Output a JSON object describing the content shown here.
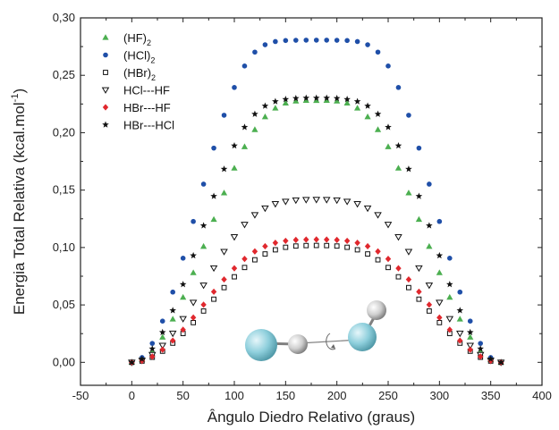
{
  "chart_data": {
    "type": "scatter",
    "xlabel": "Ângulo Diedro Relativo (graus)",
    "ylabel_main": "Energia Total Relativa (kcal.mol",
    "ylabel_sup": "-1",
    "ylabel_close": ")",
    "xlim": [
      -50,
      400
    ],
    "ylim": [
      -0.02,
      0.3
    ],
    "xticks": [
      -50,
      0,
      50,
      100,
      150,
      200,
      250,
      300,
      350,
      400
    ],
    "yticks": [
      0.0,
      0.05,
      0.1,
      0.15,
      0.2,
      0.25,
      0.3
    ],
    "ytick_labels": [
      "0,00",
      "0,05",
      "0,10",
      "0,15",
      "0,20",
      "0,25",
      "0,30"
    ],
    "x": [
      0,
      10,
      20,
      30,
      40,
      50,
      60,
      70,
      80,
      90,
      100,
      110,
      120,
      130,
      140,
      150,
      160,
      170,
      180,
      190,
      200,
      210,
      220,
      230,
      240,
      250,
      260,
      270,
      280,
      290,
      300,
      310,
      320,
      330,
      340,
      350,
      360
    ],
    "legend_position": "top-left",
    "series": [
      {
        "name": "(HF)",
        "sub": "2",
        "marker": "triangle-up",
        "color": "#4caf50",
        "values": [
          0.0,
          0.0025,
          0.0099,
          0.0218,
          0.0376,
          0.0566,
          0.078,
          0.1009,
          0.1244,
          0.1475,
          0.1691,
          0.1877,
          0.2026,
          0.2138,
          0.2213,
          0.2257,
          0.2275,
          0.2281,
          0.228,
          0.2281,
          0.2275,
          0.2257,
          0.2213,
          0.2138,
          0.2026,
          0.1877,
          0.1691,
          0.1475,
          0.1244,
          0.1009,
          0.078,
          0.0566,
          0.0376,
          0.0218,
          0.0099,
          0.0025,
          0.0
        ]
      },
      {
        "name": "(HCl)",
        "sub": "2",
        "marker": "circle",
        "color": "#1f4fa8",
        "values": [
          0.0,
          0.0042,
          0.0165,
          0.0359,
          0.0612,
          0.0907,
          0.1227,
          0.1552,
          0.1866,
          0.2152,
          0.2394,
          0.2581,
          0.2702,
          0.2766,
          0.2794,
          0.2803,
          0.2805,
          0.2806,
          0.2806,
          0.2806,
          0.2805,
          0.2803,
          0.2794,
          0.2766,
          0.2702,
          0.2581,
          0.2394,
          0.2152,
          0.1866,
          0.1552,
          0.1227,
          0.0907,
          0.0612,
          0.0359,
          0.0165,
          0.0042,
          0.0
        ]
      },
      {
        "name": "(HBr)",
        "sub": "2",
        "marker": "square-open",
        "color": "#111111",
        "values": [
          0.0,
          0.0011,
          0.0044,
          0.0097,
          0.0167,
          0.0251,
          0.0346,
          0.0447,
          0.055,
          0.0651,
          0.0745,
          0.0826,
          0.0893,
          0.0944,
          0.098,
          0.1002,
          0.1013,
          0.1017,
          0.1018,
          0.1017,
          0.1013,
          0.1002,
          0.098,
          0.0944,
          0.0893,
          0.0826,
          0.0745,
          0.0651,
          0.055,
          0.0447,
          0.0346,
          0.0251,
          0.0167,
          0.0097,
          0.0044,
          0.0011,
          0.0
        ]
      },
      {
        "name": "HCl---HF",
        "sub": "",
        "marker": "triangle-down-open",
        "color": "#111111",
        "values": [
          0.0,
          0.0017,
          0.0067,
          0.0147,
          0.0253,
          0.038,
          0.0522,
          0.0672,
          0.0822,
          0.0965,
          0.1093,
          0.1201,
          0.1285,
          0.1343,
          0.1381,
          0.1402,
          0.1413,
          0.1417,
          0.1418,
          0.1417,
          0.1413,
          0.1402,
          0.1381,
          0.1343,
          0.1285,
          0.1201,
          0.1093,
          0.0965,
          0.0822,
          0.0672,
          0.0522,
          0.038,
          0.0253,
          0.0147,
          0.0067,
          0.0017,
          0.0
        ]
      },
      {
        "name": "HBr---HF",
        "sub": "",
        "marker": "diamond",
        "color": "#e0282e",
        "values": [
          0.0,
          0.0013,
          0.005,
          0.011,
          0.0189,
          0.0284,
          0.039,
          0.0502,
          0.0615,
          0.0722,
          0.0819,
          0.0901,
          0.0966,
          0.1011,
          0.1041,
          0.1058,
          0.1066,
          0.1069,
          0.107,
          0.1069,
          0.1066,
          0.1058,
          0.1041,
          0.1011,
          0.0966,
          0.0901,
          0.0819,
          0.0722,
          0.0615,
          0.0502,
          0.039,
          0.0284,
          0.0189,
          0.011,
          0.005,
          0.0013,
          0.0
        ]
      },
      {
        "name": "HBr---HCl",
        "sub": "",
        "marker": "star",
        "color": "#111111",
        "values": [
          0.0,
          0.0029,
          0.0118,
          0.0261,
          0.0452,
          0.0679,
          0.093,
          0.1191,
          0.1447,
          0.1683,
          0.1887,
          0.2048,
          0.2162,
          0.2233,
          0.2272,
          0.2291,
          0.2299,
          0.2302,
          0.2302,
          0.2302,
          0.2299,
          0.2291,
          0.2272,
          0.2233,
          0.2162,
          0.2048,
          0.1887,
          0.1683,
          0.1447,
          0.1191,
          0.093,
          0.0679,
          0.0452,
          0.0261,
          0.0118,
          0.0029,
          0.0
        ]
      }
    ],
    "inset": {
      "colors": {
        "large_atom": "#8ecfdc",
        "small_atom": "#cfcfcf",
        "bond": "#808080"
      }
    }
  }
}
